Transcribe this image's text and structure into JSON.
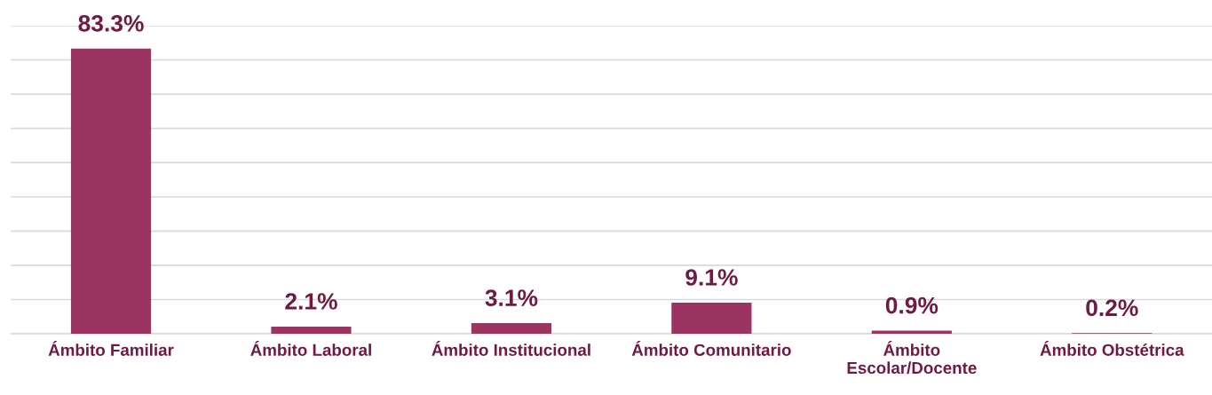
{
  "chart_data": {
    "type": "bar",
    "categories": [
      "Ámbito Familiar",
      "Ámbito Laboral",
      "Ámbito Institucional",
      "Ámbito Comunitario",
      "Ámbito\nEscolar/Docente",
      "Ámbito Obstétrica"
    ],
    "values": [
      83.3,
      2.1,
      3.1,
      9.1,
      0.9,
      0.2
    ],
    "value_labels": [
      "83.3%",
      "2.1%",
      "3.1%",
      "9.1%",
      "0.9%",
      "0.2%"
    ],
    "color": "#9b3462",
    "ylim": [
      0,
      90
    ],
    "yticks": [
      {
        "value": 0,
        "label": null
      },
      {
        "value": 10,
        "label": null
      },
      {
        "value": 20,
        "label": null
      },
      {
        "value": 30,
        "label": null
      },
      {
        "value": 40,
        "label": null
      },
      {
        "value": 50,
        "label": null
      },
      {
        "value": 60,
        "label": null
      },
      {
        "value": 70,
        "label": null
      },
      {
        "value": 80,
        "label": null
      },
      {
        "value": 90,
        "label": null
      }
    ],
    "tick_labels": "x",
    "grid": "y"
  }
}
